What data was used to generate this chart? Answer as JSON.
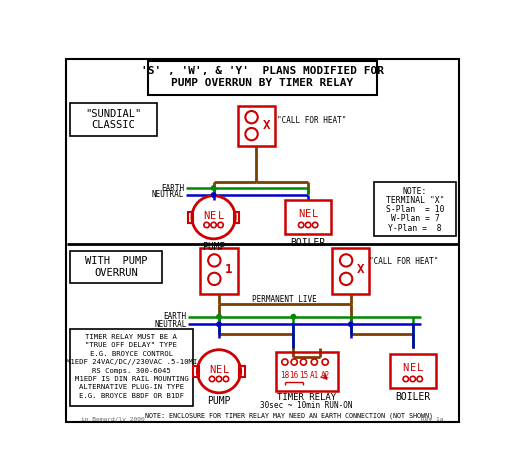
{
  "title_line1": "'S' , 'W', & 'Y'  PLANS MODIFIED FOR",
  "title_line2": "PUMP OVERRUN BY TIMER RELAY",
  "bg_color": "#ffffff",
  "red": "#cc0000",
  "green": "#008800",
  "blue": "#0000cc",
  "brown": "#7B3F00",
  "black": "#000000",
  "gray": "#666666",
  "sundial_label": [
    "\"SUNDIAL\"",
    "CLASSIC"
  ],
  "with_pump_label": [
    "WITH  PUMP",
    "OVERRUN"
  ],
  "note_lines": [
    "NOTE:",
    "TERMINAL \"X\"",
    "S-Plan  = 10",
    "W-Plan = 7",
    "Y-Plan =  8"
  ],
  "timer_info": [
    "TIMER RELAY MUST BE A",
    "\"TRUE OFF DELAY\" TYPE",
    "E.G. BROYCE CONTROL",
    "M1EDF 24VAC/DC//230VAC .5-10MI",
    "RS Comps. 300-6045",
    "M1EDF IS DIN RAIL MOUNTING",
    "ALTERNATIVE PLUG-IN TYPE",
    "E.G. BROYCE B8DF OR B1DF"
  ],
  "bottom_note": "NOTE: ENCLOSURE FOR TIMER RELAY MAY NEED AN EARTH CONNECTION (NOT SHOWN)",
  "credit": "in Bemard/lv 2000",
  "rev": "Rev 1a"
}
